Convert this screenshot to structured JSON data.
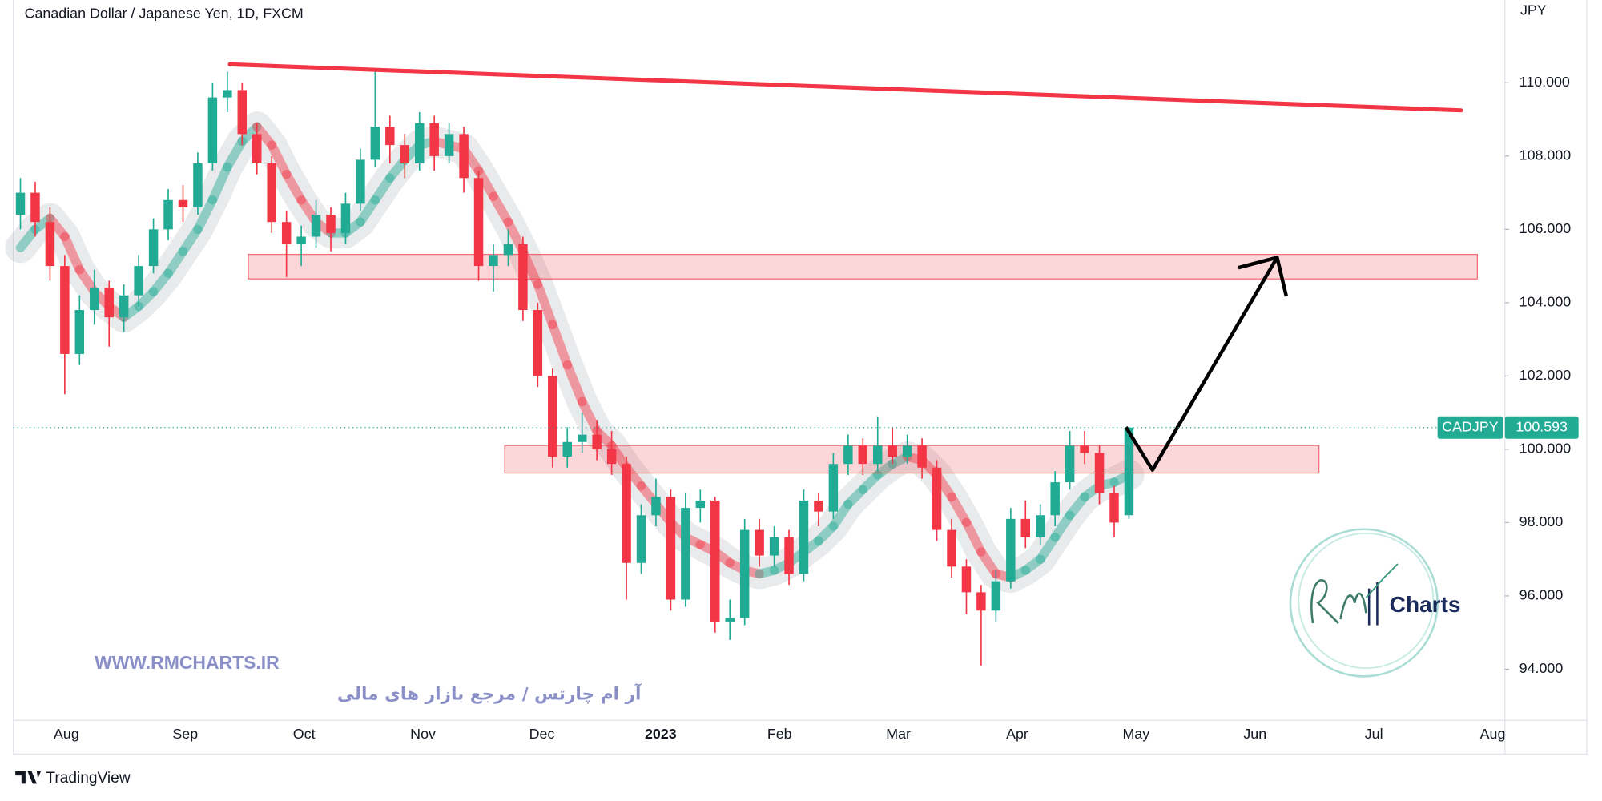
{
  "header": {
    "title": "Canadian Dollar / Japanese Yen, 1D, FXCM",
    "currency": "JPY"
  },
  "chart_data": {
    "type": "candlestick",
    "symbol": "CADJPY",
    "last_price": 100.593,
    "up_color": "#22ab94",
    "down_color": "#f23645",
    "ylim": [
      92.606,
      112.258
    ],
    "yticks": [
      {
        "value": 94,
        "label": "94.000"
      },
      {
        "value": 96,
        "label": "96.000"
      },
      {
        "value": 98,
        "label": "98.000"
      },
      {
        "value": 100,
        "label": "100.000"
      },
      {
        "value": 102,
        "label": "102.000"
      },
      {
        "value": 104,
        "label": "104.000"
      },
      {
        "value": 106,
        "label": "106.000"
      },
      {
        "value": 108,
        "label": "108.000"
      },
      {
        "value": 110,
        "label": "110.000"
      }
    ],
    "x_labels": [
      "Aug",
      "Sep",
      "Oct",
      "Nov",
      "Dec",
      "2023",
      "Feb",
      "Mar",
      "Apr",
      "May",
      "Jun",
      "Jul",
      "Aug"
    ],
    "candles": [
      [
        106.4,
        107.4,
        106.0,
        107.0
      ],
      [
        107.0,
        107.3,
        105.8,
        106.2
      ],
      [
        106.2,
        106.6,
        104.6,
        105.0
      ],
      [
        105.0,
        105.3,
        101.5,
        102.6
      ],
      [
        102.6,
        104.2,
        102.3,
        103.8
      ],
      [
        103.8,
        104.9,
        103.4,
        104.4
      ],
      [
        104.4,
        104.6,
        102.8,
        103.6
      ],
      [
        103.6,
        104.5,
        103.2,
        104.2
      ],
      [
        104.2,
        105.3,
        103.9,
        105.0
      ],
      [
        105.0,
        106.3,
        104.8,
        106.0
      ],
      [
        106.0,
        107.1,
        105.7,
        106.8
      ],
      [
        106.8,
        107.2,
        106.2,
        106.6
      ],
      [
        106.6,
        108.1,
        106.4,
        107.8
      ],
      [
        107.8,
        110.0,
        107.6,
        109.6
      ],
      [
        109.6,
        110.3,
        109.2,
        109.8
      ],
      [
        109.8,
        110.0,
        108.3,
        108.6
      ],
      [
        108.6,
        108.9,
        107.5,
        107.8
      ],
      [
        107.8,
        108.0,
        105.9,
        106.2
      ],
      [
        106.2,
        106.5,
        104.7,
        105.6
      ],
      [
        105.6,
        106.1,
        105.0,
        105.8
      ],
      [
        105.8,
        106.8,
        105.5,
        106.4
      ],
      [
        106.4,
        106.6,
        105.4,
        105.9
      ],
      [
        105.9,
        107.0,
        105.6,
        106.7
      ],
      [
        106.7,
        108.2,
        106.5,
        107.9
      ],
      [
        107.9,
        110.3,
        107.7,
        108.8
      ],
      [
        108.8,
        109.1,
        107.8,
        108.3
      ],
      [
        108.3,
        108.6,
        107.4,
        107.8
      ],
      [
        107.8,
        109.2,
        107.6,
        108.9
      ],
      [
        108.9,
        109.1,
        107.6,
        108.0
      ],
      [
        108.0,
        108.9,
        107.8,
        108.6
      ],
      [
        108.6,
        108.8,
        107.0,
        107.4
      ],
      [
        107.4,
        107.6,
        104.6,
        105.0
      ],
      [
        105.0,
        105.6,
        104.3,
        105.3
      ],
      [
        105.3,
        106.0,
        105.0,
        105.6
      ],
      [
        105.6,
        105.8,
        103.5,
        103.8
      ],
      [
        103.8,
        104.0,
        101.7,
        102.0
      ],
      [
        102.0,
        102.2,
        99.5,
        99.8
      ],
      [
        99.8,
        100.6,
        99.5,
        100.2
      ],
      [
        100.2,
        101.0,
        99.9,
        100.4
      ],
      [
        100.4,
        100.8,
        99.7,
        100.0
      ],
      [
        100.0,
        100.5,
        99.3,
        99.6
      ],
      [
        99.6,
        99.8,
        95.9,
        96.9
      ],
      [
        96.9,
        98.5,
        96.6,
        98.2
      ],
      [
        98.2,
        99.2,
        97.9,
        98.7
      ],
      [
        98.7,
        98.9,
        95.6,
        95.9
      ],
      [
        95.9,
        98.8,
        95.7,
        98.4
      ],
      [
        98.4,
        98.9,
        98.0,
        98.6
      ],
      [
        98.6,
        98.7,
        95.0,
        95.3
      ],
      [
        95.3,
        95.9,
        94.8,
        95.4
      ],
      [
        95.4,
        98.1,
        95.2,
        97.8
      ],
      [
        97.8,
        98.1,
        96.8,
        97.1
      ],
      [
        97.1,
        97.9,
        96.8,
        97.6
      ],
      [
        97.6,
        97.8,
        96.3,
        96.6
      ],
      [
        96.6,
        98.9,
        96.4,
        98.6
      ],
      [
        98.6,
        98.8,
        97.9,
        98.3
      ],
      [
        98.3,
        99.9,
        98.1,
        99.6
      ],
      [
        99.6,
        100.4,
        99.3,
        100.1
      ],
      [
        100.1,
        100.3,
        99.3,
        99.6
      ],
      [
        99.6,
        100.9,
        99.4,
        100.1
      ],
      [
        100.1,
        100.6,
        99.6,
        99.8
      ],
      [
        99.8,
        100.4,
        99.6,
        100.1
      ],
      [
        100.1,
        100.3,
        99.2,
        99.5
      ],
      [
        99.5,
        99.7,
        97.5,
        97.8
      ],
      [
        97.8,
        98.1,
        96.5,
        96.8
      ],
      [
        96.8,
        97.0,
        95.5,
        96.1
      ],
      [
        96.1,
        96.3,
        94.1,
        95.6
      ],
      [
        95.6,
        96.7,
        95.3,
        96.4
      ],
      [
        96.4,
        98.4,
        96.2,
        98.1
      ],
      [
        98.1,
        98.6,
        97.3,
        97.6
      ],
      [
        97.6,
        98.5,
        97.4,
        98.2
      ],
      [
        98.2,
        99.4,
        97.9,
        99.1
      ],
      [
        99.1,
        100.5,
        98.9,
        100.1
      ],
      [
        100.1,
        100.5,
        99.6,
        99.9
      ],
      [
        99.9,
        100.1,
        98.5,
        98.8
      ],
      [
        98.8,
        99.0,
        97.6,
        98.0
      ],
      [
        98.2,
        100.6,
        98.1,
        100.593
      ]
    ],
    "ma": [
      105.5,
      106.0,
      106.3,
      105.8,
      104.9,
      104.3,
      103.9,
      103.6,
      103.9,
      104.3,
      104.8,
      105.4,
      106.0,
      106.8,
      107.7,
      108.4,
      108.8,
      108.3,
      107.5,
      106.8,
      106.2,
      105.9,
      105.9,
      106.2,
      106.8,
      107.4,
      107.9,
      108.3,
      108.4,
      108.3,
      108.2,
      107.6,
      106.9,
      106.2,
      105.4,
      104.5,
      103.4,
      102.3,
      101.3,
      100.5,
      100.1,
      99.5,
      99.0,
      98.5,
      98.0,
      97.6,
      97.4,
      97.2,
      96.9,
      96.7,
      96.6,
      96.7,
      96.9,
      97.2,
      97.5,
      97.9,
      98.5,
      98.9,
      99.3,
      99.6,
      99.8,
      99.7,
      99.3,
      98.7,
      98.0,
      97.2,
      96.6,
      96.5,
      96.7,
      97.0,
      97.6,
      98.2,
      98.7,
      99.0,
      99.1,
      99.3
    ]
  },
  "watermark": {
    "url": "WWW.RMCHARTS.IR",
    "tagline": "آر ام چارتس / مرجع بازار های مالی"
  },
  "logo": {
    "text": "Charts"
  },
  "footer": {
    "brand": "TradingView"
  }
}
